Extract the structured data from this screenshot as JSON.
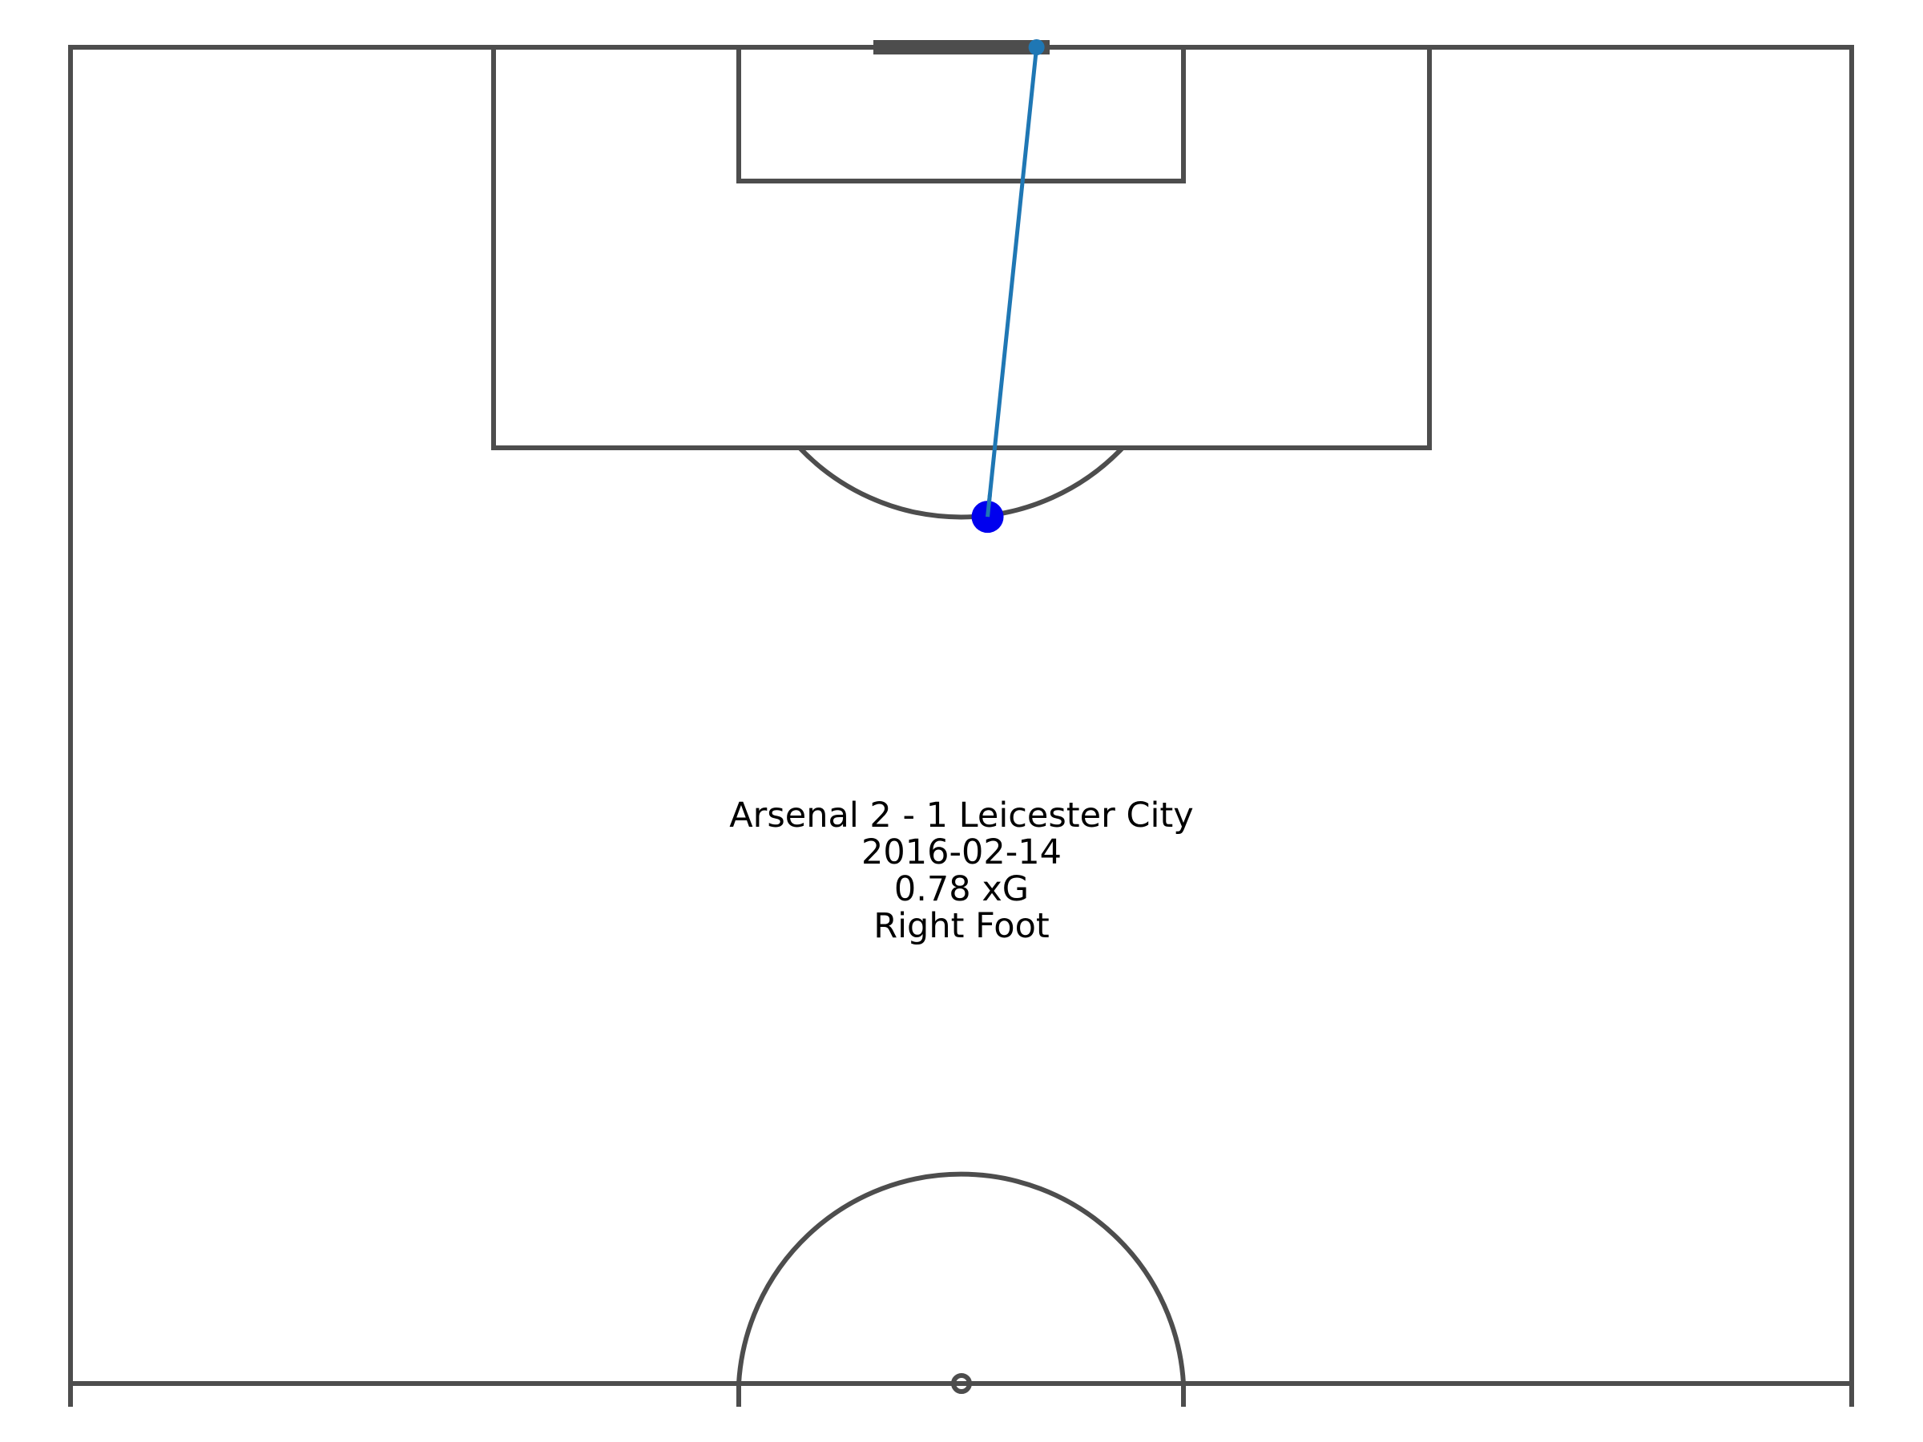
{
  "chart_data": {
    "type": "shot-map",
    "pitch": "half-pitch, vertical, attacking upward",
    "colors": {
      "lines": "#4d4d4d",
      "shot_marker": "#0000ee",
      "shot_line": "#1f77b4",
      "background": "#ffffff"
    },
    "shot": {
      "start": {
        "x": 98.9,
        "y": 41.2
      },
      "end": {
        "x": 120.0,
        "y": 43.4
      }
    },
    "annotation": {
      "match": "Arsenal 2 - 1 Leicester City",
      "date": "2016-02-14",
      "xg": "0.78 xG",
      "body_part": "Right Foot"
    }
  }
}
